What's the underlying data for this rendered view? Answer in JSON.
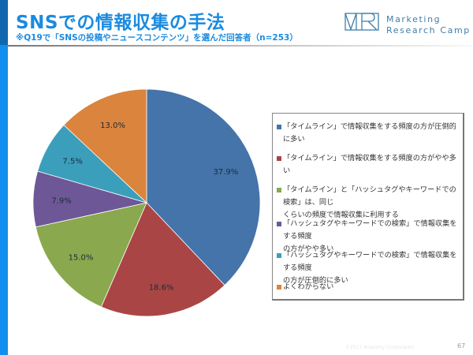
{
  "header": {
    "title": "SNSでの情報収集の手法",
    "subtitle": "※Q19で「SNSの投稿やニュースコンテンツ」を選んだ回答者（n=253）"
  },
  "logo": {
    "mark": "MR",
    "line1": "Marketing",
    "line2": "Research Camp"
  },
  "colors": {
    "accent": "#1a8be0",
    "bar_top": "#1167ae",
    "bar_bottom": "#118ff0"
  },
  "chart_data": {
    "type": "pie",
    "title": "",
    "start_angle": "12 o'clock, clockwise",
    "legend_position": "right",
    "series": [
      {
        "name": "「タイムライン」で情報収集をする頻度の方が圧倒的に多い",
        "value": 37.9,
        "label": "37.9%",
        "color": "#4474aa"
      },
      {
        "name": "「タイムライン」で情報収集をする頻度の方がやや多い",
        "value": 18.6,
        "label": "18.6%",
        "color": "#a94645"
      },
      {
        "name": "「タイムライン」と「ハッシュタグやキーワードでの検索」は、同じくらいの頻度で情報収集に利用する",
        "value": 15.0,
        "label": "15.0%",
        "color": "#8aa84d"
      },
      {
        "name": "「ハッシュタグやキーワードでの検索」で情報収集をする頻度の方がやや多い",
        "value": 7.9,
        "label": "7.9%",
        "color": "#6e5796"
      },
      {
        "name": "「ハッシュタグやキーワードでの検索」で情報収集をする頻度の方が圧倒的に多い",
        "value": 7.5,
        "label": "7.5%",
        "color": "#3b9fbb"
      },
      {
        "name": "よくわからない",
        "value": 13.0,
        "label": "13.0%",
        "color": "#db843d"
      }
    ]
  },
  "legend": {
    "items": [
      {
        "line1": "「タイムライン」で情報収集をする頻度の方が圧倒的に多い",
        "line2": ""
      },
      {
        "line1": "「タイムライン」で情報収集をする頻度の方がやや多い",
        "line2": ""
      },
      {
        "line1": "「タイムライン」と「ハッシュタグやキーワードでの検索」は、同じ",
        "line2": "くらいの頻度で情報収集に利用する"
      },
      {
        "line1": "「ハッシュタグやキーワードでの検索」で情報収集をする頻度",
        "line2": "の方がやや多い"
      },
      {
        "line1": "「ハッシュタグやキーワードでの検索」で情報収集をする頻度",
        "line2": "の方が圧倒的に多い"
      },
      {
        "line1": "よくわからない",
        "line2": ""
      }
    ]
  },
  "footer": {
    "copyright": "©2017 Anatomy Corporation",
    "page_number": "67"
  }
}
